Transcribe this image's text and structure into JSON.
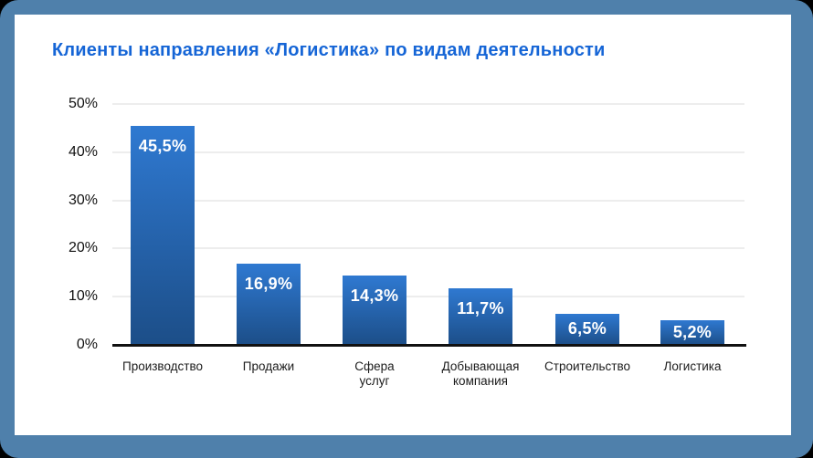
{
  "window": {
    "frame_color": "#4f80ab",
    "card_color": "#ffffff",
    "outside_color": "#000000"
  },
  "title": {
    "text": "Клиенты направления «Логистика» по видам деятельности",
    "color": "#1565d6"
  },
  "chart_data": {
    "type": "bar",
    "title": "Клиенты направления «Логистика» по видам деятельности",
    "categories": [
      "Производство",
      "Продажи",
      "Сфера услуг",
      "Добывающая компания",
      "Строительство",
      "Логистика"
    ],
    "category_lines": [
      [
        "Производство"
      ],
      [
        "Продажи"
      ],
      [
        "Сфера",
        "услуг"
      ],
      [
        "Добывающая",
        "компания"
      ],
      [
        "Строительство"
      ],
      [
        "Логистика"
      ]
    ],
    "values": [
      45.5,
      16.9,
      14.3,
      11.7,
      6.5,
      5.2
    ],
    "value_labels": [
      "45,5%",
      "16,9%",
      "14,3%",
      "11,7%",
      "6,5%",
      "5,2%"
    ],
    "y_ticks": [
      {
        "label": "0%",
        "value": 0
      },
      {
        "label": "10%",
        "value": 10
      },
      {
        "label": "20%",
        "value": 20
      },
      {
        "label": "30%",
        "value": 30
      },
      {
        "label": "40%",
        "value": 40
      },
      {
        "label": "50%",
        "value": 50
      }
    ],
    "ylim": [
      0,
      50
    ],
    "grid": true,
    "legend": false,
    "colors": {
      "bar_gradient_top": "#2f79d1",
      "bar_gradient_bottom": "#1c4e88",
      "value_label": "#ffffff",
      "gridline": "#ededed",
      "baseline": "#111111",
      "axis_label": "#111111",
      "category_label": "#1c1c1c"
    }
  }
}
